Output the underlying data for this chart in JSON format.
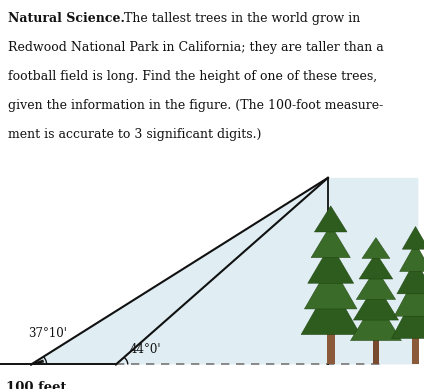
{
  "bg_color": "#ffffff",
  "title_bold": "Natural Science.",
  "title_rest": " The tallest trees in the world grow in Redwood National Park in California; they are taller than a football field is long. Find the height of one of these trees, given the information in the figure. (The 100-foot measure-ment is accurate to 3 significant digits.)",
  "angle1_label": "37°10'",
  "angle2_label": "44°0'",
  "base_label": "100 feet",
  "line_color": "#111111",
  "dashed_color": "#777777",
  "sky_color": "#c8e0ea",
  "tree_foliage1": "#2d5c1e",
  "tree_foliage2": "#3a6b28",
  "tree_trunk": "#8b5a3a",
  "A": [
    0.55,
    0.52
  ],
  "B": [
    2.05,
    0.52
  ],
  "T": [
    5.8,
    4.48
  ],
  "ang1_deg": 37.1667,
  "ang2_deg": 44.0
}
